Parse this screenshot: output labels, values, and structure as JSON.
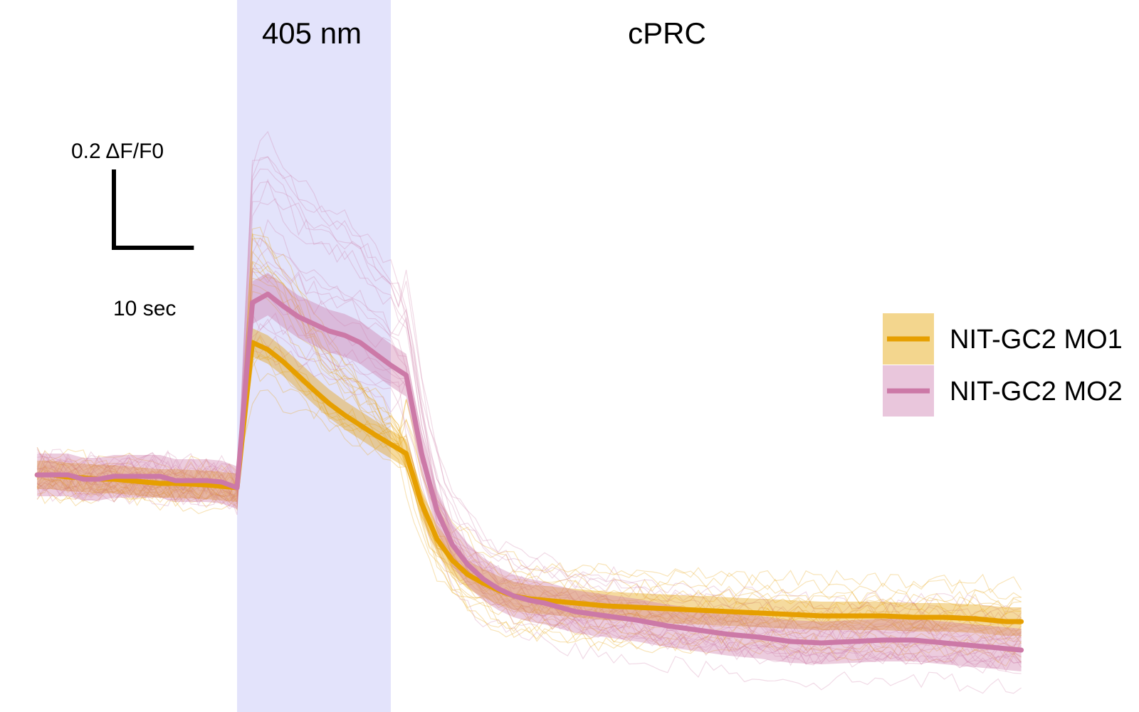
{
  "chart_data": {
    "type": "line",
    "title": "",
    "xlabel": "",
    "ylabel": "",
    "annotations": {
      "stimulus_label": "405 nm",
      "region_label": "cPRC"
    },
    "scale_bar": {
      "y_label": "0.2 ΔF/F0",
      "x_label": "10 sec",
      "y_value": 0.2,
      "x_value_sec": 10
    },
    "stimulus_window_sec": [
      0,
      10
    ],
    "legend_placement": "right",
    "grid": false,
    "x_unit": "sec",
    "x": [
      -13,
      -12,
      -11,
      -10,
      -9,
      -8,
      -7,
      -6,
      -5,
      -4,
      -3,
      -2,
      -1,
      0,
      1,
      2,
      3,
      4,
      5,
      6,
      7,
      8,
      9,
      10,
      11,
      12,
      13,
      14,
      15,
      16,
      17,
      18,
      19,
      20,
      21,
      22,
      24,
      26,
      28,
      30,
      32,
      34,
      36,
      38,
      40,
      42,
      44,
      46,
      48,
      50,
      51
    ],
    "series": [
      {
        "name": "NIT-GC2 MO1",
        "color": "#E69F00",
        "band_color": "#F3D68E",
        "mean": [
          0.0,
          0.0,
          -0.003,
          -0.004,
          -0.006,
          -0.006,
          -0.008,
          -0.01,
          -0.012,
          -0.012,
          -0.013,
          -0.014,
          -0.016,
          -0.018,
          0.186,
          0.176,
          0.159,
          0.139,
          0.119,
          0.1,
          0.084,
          0.07,
          0.056,
          0.043,
          0.03,
          -0.04,
          -0.09,
          -0.12,
          -0.14,
          -0.152,
          -0.162,
          -0.17,
          -0.174,
          -0.176,
          -0.178,
          -0.18,
          -0.184,
          -0.186,
          -0.188,
          -0.19,
          -0.192,
          -0.194,
          -0.196,
          -0.198,
          -0.198,
          -0.198,
          -0.2,
          -0.2,
          -0.202,
          -0.206,
          -0.206
        ],
        "sem": 0.02
      },
      {
        "name": "NIT-GC2 MO2",
        "color": "#CC79A7",
        "band_color": "#E9C6DC",
        "mean": [
          0.0,
          0.0,
          0.0,
          -0.006,
          -0.006,
          -0.002,
          -0.002,
          -0.002,
          -0.002,
          -0.008,
          -0.008,
          -0.008,
          -0.01,
          -0.018,
          0.242,
          0.254,
          0.237,
          0.222,
          0.212,
          0.202,
          0.196,
          0.186,
          0.17,
          0.154,
          0.14,
          0.03,
          -0.05,
          -0.098,
          -0.126,
          -0.146,
          -0.16,
          -0.17,
          -0.176,
          -0.18,
          -0.186,
          -0.192,
          -0.198,
          -0.204,
          -0.212,
          -0.218,
          -0.224,
          -0.228,
          -0.234,
          -0.236,
          -0.234,
          -0.232,
          -0.232,
          -0.236,
          -0.24,
          -0.244,
          -0.246
        ],
        "sem": 0.03
      }
    ]
  }
}
